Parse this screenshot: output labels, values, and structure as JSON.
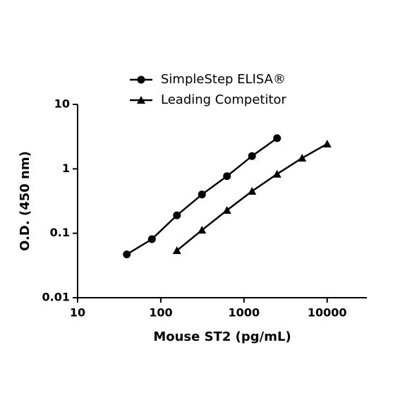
{
  "chart_data": {
    "type": "line",
    "xlabel": "Mouse ST2 (pg/mL)",
    "ylabel": "O.D. (450 nm)",
    "xscale": "log",
    "yscale": "log",
    "xlim": [
      10,
      30000
    ],
    "ylim": [
      0.01,
      10
    ],
    "xticks": [
      10,
      100,
      1000,
      10000
    ],
    "yticks": [
      0.01,
      0.1,
      1,
      10
    ],
    "legend": "top",
    "series": [
      {
        "name": "SimpleStep ELISA®",
        "color": "#000000",
        "marker": "circle",
        "x": [
          39.06,
          78.13,
          156.25,
          312.5,
          625,
          1250,
          2500
        ],
        "values": [
          0.047,
          0.081,
          0.19,
          0.4,
          0.77,
          1.58,
          2.99
        ]
      },
      {
        "name": "Leading Competitor",
        "color": "#000000",
        "marker": "triangle",
        "x": [
          156.25,
          312.5,
          625,
          1250,
          2500,
          5000,
          10000
        ],
        "values": [
          0.054,
          0.112,
          0.228,
          0.45,
          0.83,
          1.47,
          2.44
        ]
      }
    ]
  }
}
